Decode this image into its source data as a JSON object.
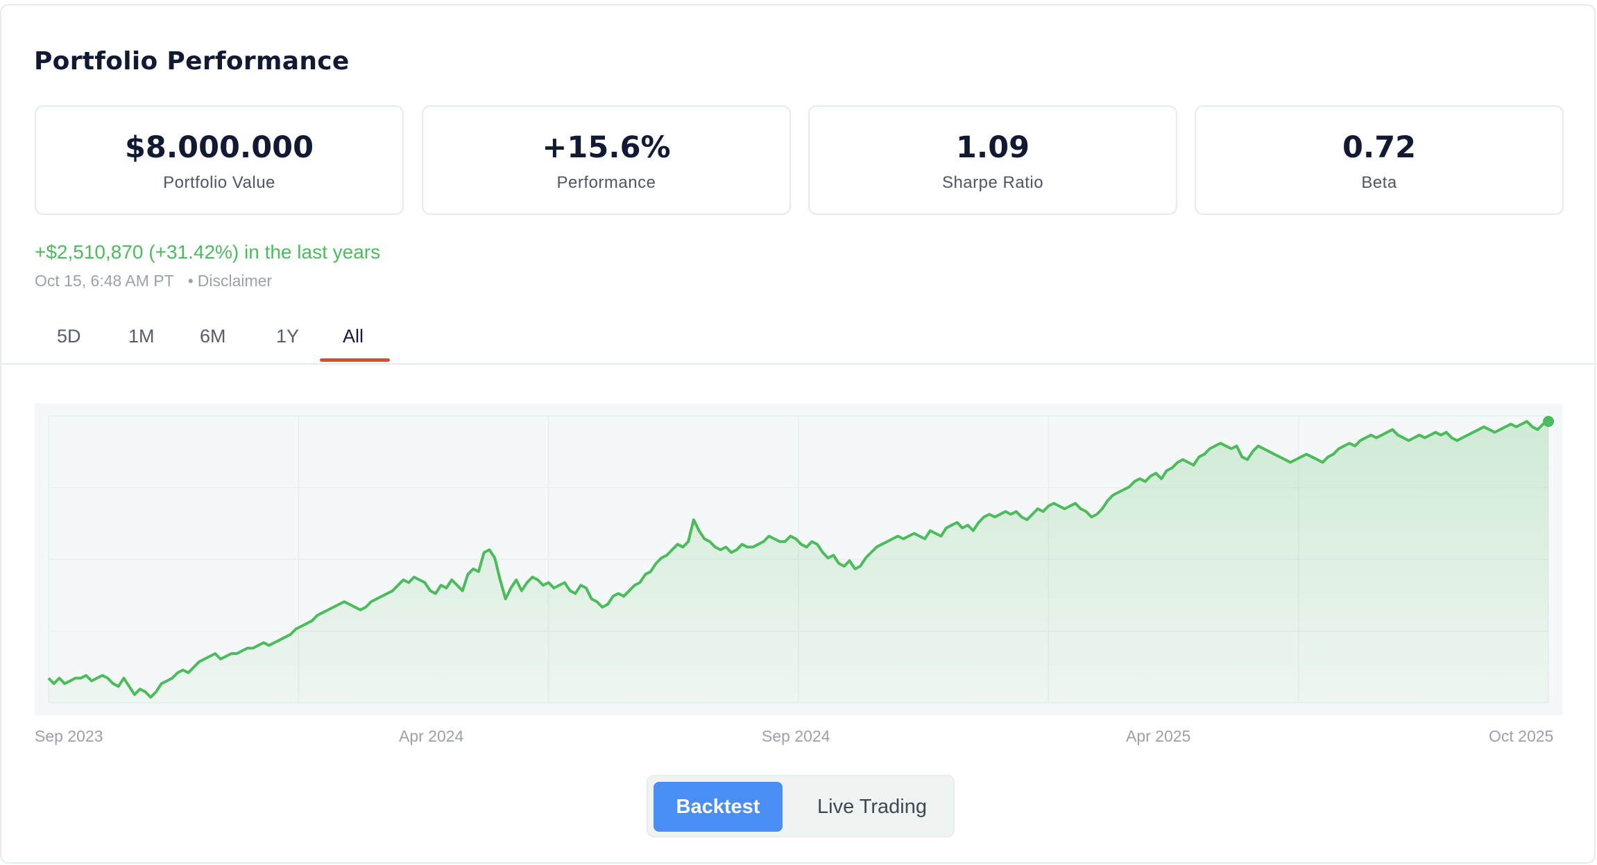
{
  "card": {
    "title": "Portfolio Performance"
  },
  "stats": [
    {
      "value": "$8.000.000",
      "label": "Portfolio Value"
    },
    {
      "value": "+15.6%",
      "label": "Performance"
    },
    {
      "value": "1.09",
      "label": "Sharpe Ratio"
    },
    {
      "value": "0.72",
      "label": "Beta"
    }
  ],
  "change_text": "+$2,510,870 (+31.42%) in the last years",
  "timestamp": "Oct 15, 6:48 AM PT",
  "disclaimer": "Disclaimer",
  "range_tabs": [
    "5D",
    "1M",
    "6M",
    "1Y",
    "All"
  ],
  "active_tab": "All",
  "mode_toggle": {
    "backtest": "Backtest",
    "live": "Live Trading",
    "active": "Backtest"
  },
  "colors": {
    "line": "#4cbb5c",
    "positive_text": "#4cbb5c",
    "tab_accent": "#e0493a",
    "button_active": "#4a8ef5"
  },
  "chart_data": {
    "type": "area",
    "x_tick_labels": [
      "Sep 2023",
      "Apr 2024",
      "Sep 2024",
      "Apr 2025",
      "Oct 2025"
    ],
    "grid": true,
    "series": [
      {
        "values": [
          36,
          34,
          36,
          34,
          35,
          36,
          36,
          37,
          35,
          36,
          37,
          36,
          34,
          33,
          36,
          33,
          30,
          32,
          31,
          29,
          31,
          34,
          35,
          36,
          38,
          39,
          38,
          40,
          42,
          43,
          44,
          45,
          43,
          44,
          45,
          45,
          46,
          47,
          47,
          48,
          49,
          48,
          49,
          50,
          51,
          52,
          54,
          55,
          56,
          57,
          59,
          60,
          61,
          62,
          63,
          64,
          63,
          62,
          61,
          62,
          64,
          65,
          66,
          67,
          68,
          70,
          72,
          71,
          73,
          72,
          71,
          68,
          67,
          70,
          69,
          72,
          70,
          68,
          74,
          76,
          75,
          82,
          83,
          80,
          72,
          65,
          69,
          72,
          68,
          71,
          73,
          72,
          70,
          71,
          69,
          70,
          71,
          68,
          67,
          70,
          69,
          65,
          64,
          62,
          63,
          66,
          67,
          66,
          68,
          70,
          71,
          74,
          75,
          78,
          80,
          81,
          83,
          85,
          84,
          86,
          94,
          90,
          87,
          86,
          84,
          83,
          84,
          82,
          83,
          85,
          84,
          84,
          85,
          86,
          88,
          87,
          86,
          86,
          88,
          87,
          85,
          84,
          86,
          85,
          82,
          80,
          81,
          78,
          77,
          79,
          76,
          77,
          80,
          82,
          84,
          85,
          86,
          87,
          88,
          87,
          88,
          89,
          88,
          87,
          90,
          89,
          88,
          91,
          92,
          93,
          91,
          92,
          90,
          93,
          95,
          96,
          95,
          96,
          97,
          96,
          97,
          95,
          94,
          96,
          98,
          97,
          99,
          100,
          99,
          98,
          99,
          100,
          98,
          97,
          95,
          96,
          98,
          101,
          103,
          104,
          105,
          106,
          108,
          109,
          108,
          110,
          111,
          109,
          112,
          113,
          115,
          116,
          115,
          114,
          117,
          118,
          120,
          121,
          122,
          121,
          120,
          121,
          117,
          116,
          119,
          121,
          120,
          119,
          118,
          117,
          116,
          115,
          116,
          117,
          118,
          117,
          116,
          115,
          117,
          118,
          120,
          121,
          122,
          121,
          123,
          124,
          125,
          124,
          125,
          126,
          127,
          125,
          124,
          123,
          124,
          125,
          124,
          125,
          126,
          125,
          126,
          124,
          123,
          124,
          125,
          126,
          127,
          128,
          127,
          126,
          127,
          128,
          129,
          128,
          129,
          130,
          128,
          127,
          129,
          130
        ]
      }
    ]
  }
}
